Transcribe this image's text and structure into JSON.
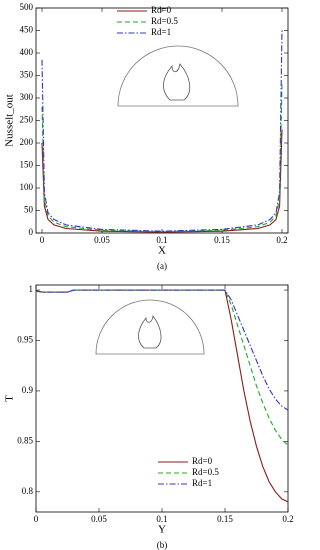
{
  "chart_data": [
    {
      "type": "line",
      "x_label": "X",
      "y_label": "Nusselt_out",
      "caption": "(a)",
      "x": [
        0,
        0.002,
        0.005,
        0.01,
        0.02,
        0.05,
        0.1,
        0.15,
        0.18,
        0.19,
        0.195,
        0.198,
        0.2
      ],
      "series": [
        {
          "name": "Rd=0",
          "color": "#8b1a1a",
          "style": "solid",
          "values": [
            200,
            60,
            30,
            18,
            10,
            4,
            2,
            4,
            10,
            18,
            30,
            60,
            230
          ]
        },
        {
          "name": "Rd=0.5",
          "color": "#22aa22",
          "style": "dashed",
          "values": [
            280,
            75,
            38,
            24,
            14,
            6,
            3,
            6,
            14,
            24,
            38,
            75,
            330
          ]
        },
        {
          "name": "Rd=1",
          "color": "#3333cc",
          "style": "dashdot",
          "values": [
            385,
            90,
            45,
            30,
            18,
            8,
            4,
            8,
            18,
            30,
            45,
            90,
            455
          ]
        }
      ],
      "xlim": [
        -0.005,
        0.205
      ],
      "xticks": [
        0,
        0.05,
        0.1,
        0.15,
        0.2
      ],
      "ylim": [
        0,
        500
      ],
      "yticks": [
        0,
        50,
        100,
        150,
        200,
        250,
        300,
        350,
        400,
        450,
        500
      ],
      "legend": "upper center"
    },
    {
      "type": "line",
      "x_label": "Y",
      "y_label": "T",
      "caption": "(b)",
      "x": [
        0,
        0.005,
        0.025,
        0.03,
        0.1,
        0.15,
        0.155,
        0.16,
        0.165,
        0.17,
        0.175,
        0.18,
        0.185,
        0.19,
        0.195,
        0.2
      ],
      "series": [
        {
          "name": "Rd=0",
          "color": "#8b1a1a",
          "style": "solid",
          "values": [
            0.999,
            0.998,
            0.998,
            1,
            1,
            1,
            0.97,
            0.935,
            0.9,
            0.87,
            0.845,
            0.825,
            0.81,
            0.8,
            0.793,
            0.79
          ]
        },
        {
          "name": "Rd=0.5",
          "color": "#22aa22",
          "style": "dashed",
          "values": [
            0.999,
            0.998,
            0.998,
            1,
            1,
            1,
            0.985,
            0.965,
            0.945,
            0.925,
            0.905,
            0.888,
            0.873,
            0.861,
            0.852,
            0.846
          ]
        },
        {
          "name": "Rd=1",
          "color": "#3333cc",
          "style": "dashdot",
          "values": [
            0.999,
            0.998,
            0.998,
            1,
            1,
            1,
            0.99,
            0.975,
            0.96,
            0.945,
            0.93,
            0.915,
            0.902,
            0.892,
            0.885,
            0.881
          ]
        }
      ],
      "xlim": [
        0,
        0.2
      ],
      "xticks": [
        0,
        0.05,
        0.1,
        0.15,
        0.2
      ],
      "ylim": [
        0.78,
        1.005
      ],
      "yticks": [
        0.8,
        0.85,
        0.9,
        0.95,
        1
      ],
      "legend": "lower right"
    }
  ]
}
